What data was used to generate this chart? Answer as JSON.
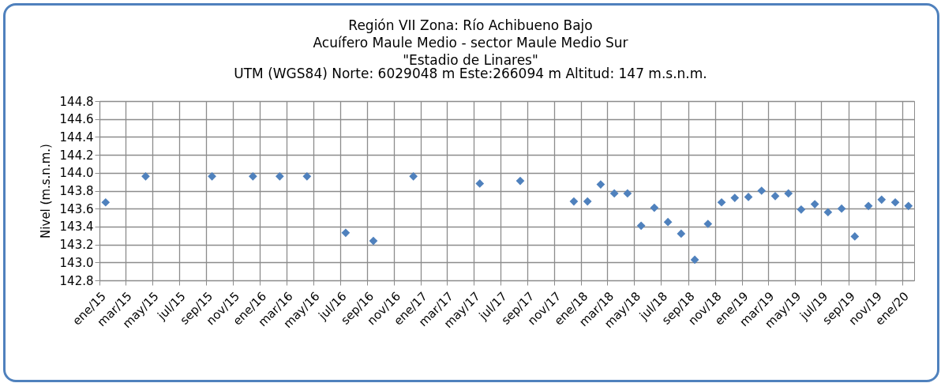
{
  "chart_data": {
    "type": "scatter",
    "title": "Región VII Zona: Río Achibueno Bajo\nAcuífero Maule Medio - sector Maule Medio Sur\n\"Estadio de Linares\"",
    "subtitle": "UTM (WGS84) Norte: 6029048 m Este:266094 m  Altitud: 147 m.s.n.m.",
    "ylabel": "Nivel (m.s.n.m.)",
    "x": [
      "2015-01-15",
      "2015-04-16",
      "2015-09-14",
      "2015-12-16",
      "2016-02-15",
      "2016-04-17",
      "2016-07-14",
      "2016-09-15",
      "2016-12-15",
      "2017-05-15",
      "2017-08-15",
      "2017-12-15",
      "2018-01-15",
      "2018-02-14",
      "2018-03-17",
      "2018-04-16",
      "2018-05-17",
      "2018-06-16",
      "2018-07-17",
      "2018-08-16",
      "2018-09-16",
      "2018-10-16",
      "2018-11-16",
      "2018-12-16",
      "2019-01-16",
      "2019-02-15",
      "2019-03-18",
      "2019-04-17",
      "2019-05-16",
      "2019-06-16",
      "2019-07-16",
      "2019-08-16",
      "2019-09-15",
      "2019-10-16",
      "2019-11-15",
      "2019-12-16",
      "2020-01-15"
    ],
    "series": [
      {
        "color": "#4f81bd",
        "values": [
          143.67,
          143.96,
          143.96,
          143.96,
          143.96,
          143.96,
          143.33,
          143.24,
          143.96,
          143.88,
          143.91,
          143.68,
          143.68,
          143.87,
          143.77,
          143.77,
          143.41,
          143.61,
          143.45,
          143.32,
          143.03,
          143.43,
          143.67,
          143.72,
          143.73,
          143.8,
          143.74,
          143.77,
          143.59,
          143.65,
          143.56,
          143.6,
          143.29,
          143.63,
          143.7,
          143.67,
          143.63
        ]
      }
    ],
    "xlim": [
      "2015-01-01",
      "2020-01-28"
    ],
    "xticks": [
      {
        "value": "2015-01",
        "label": "ene/15"
      },
      {
        "value": "2015-03",
        "label": "mar/15"
      },
      {
        "value": "2015-05",
        "label": "may/15"
      },
      {
        "value": "2015-07",
        "label": "jul/15"
      },
      {
        "value": "2015-09",
        "label": "sep/15"
      },
      {
        "value": "2015-11",
        "label": "nov/15"
      },
      {
        "value": "2016-01",
        "label": "ene/16"
      },
      {
        "value": "2016-03",
        "label": "mar/16"
      },
      {
        "value": "2016-05",
        "label": "may/16"
      },
      {
        "value": "2016-07",
        "label": "jul/16"
      },
      {
        "value": "2016-09",
        "label": "sep/16"
      },
      {
        "value": "2016-11",
        "label": "nov/16"
      },
      {
        "value": "2017-01",
        "label": "ene/17"
      },
      {
        "value": "2017-03",
        "label": "mar/17"
      },
      {
        "value": "2017-05",
        "label": "may/17"
      },
      {
        "value": "2017-07",
        "label": "jul/17"
      },
      {
        "value": "2017-09",
        "label": "sep/17"
      },
      {
        "value": "2017-11",
        "label": "nov/17"
      },
      {
        "value": "2018-01",
        "label": "ene/18"
      },
      {
        "value": "2018-03",
        "label": "mar/18"
      },
      {
        "value": "2018-05",
        "label": "may/18"
      },
      {
        "value": "2018-07",
        "label": "jul/18"
      },
      {
        "value": "2018-09",
        "label": "sep/18"
      },
      {
        "value": "2018-11",
        "label": "nov/18"
      },
      {
        "value": "2019-01",
        "label": "ene/19"
      },
      {
        "value": "2019-03",
        "label": "mar/19"
      },
      {
        "value": "2019-05",
        "label": "may/19"
      },
      {
        "value": "2019-07",
        "label": "jul/19"
      },
      {
        "value": "2019-09",
        "label": "sep/19"
      },
      {
        "value": "2019-11",
        "label": "nov/19"
      },
      {
        "value": "2020-01",
        "label": "ene/20"
      }
    ],
    "ylim": [
      142.8,
      144.8
    ],
    "yticks": [
      142.8,
      {
        "value": 143,
        "label": "143.0"
      },
      143.2,
      143.4,
      143.6,
      143.8,
      {
        "value": 144,
        "label": "144.0"
      },
      144.2,
      144.4,
      144.6,
      144.8
    ],
    "grid": true,
    "marker": "diamond"
  }
}
